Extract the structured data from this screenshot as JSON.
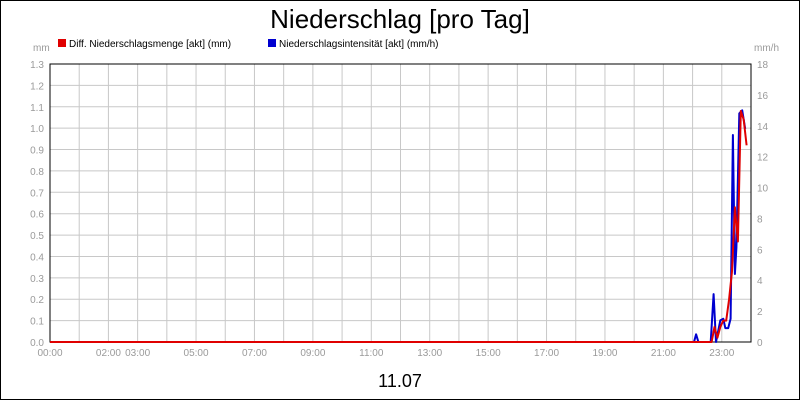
{
  "chart_data": {
    "type": "line",
    "title": "Niederschlag [pro Tag]",
    "date_label": "11.07",
    "y_left": {
      "unit": "mm",
      "range": [
        0,
        1.3
      ],
      "ticks": [
        "0.0",
        "0.1",
        "0.2",
        "0.3",
        "0.4",
        "0.5",
        "0.6",
        "0.7",
        "0.8",
        "0.9",
        "1.0",
        "1.1",
        "1.2",
        "1.3"
      ]
    },
    "y_right": {
      "unit": "mm/h",
      "range": [
        0,
        18
      ],
      "ticks": [
        "0",
        "2",
        "4",
        "6",
        "8",
        "10",
        "12",
        "14",
        "16",
        "18"
      ]
    },
    "x": {
      "range_hours": [
        0,
        24
      ],
      "ticks": [
        {
          "hour": 0,
          "label": "00:00"
        },
        {
          "hour": 2,
          "label": "02:00"
        },
        {
          "hour": 3,
          "label": "03:00"
        },
        {
          "hour": 5,
          "label": "05:00"
        },
        {
          "hour": 7,
          "label": "07:00"
        },
        {
          "hour": 9,
          "label": "09:00"
        },
        {
          "hour": 11,
          "label": "11:00"
        },
        {
          "hour": 13,
          "label": "13:00"
        },
        {
          "hour": 15,
          "label": "15:00"
        },
        {
          "hour": 17,
          "label": "17:00"
        },
        {
          "hour": 19,
          "label": "19:00"
        },
        {
          "hour": 21,
          "label": "21:00"
        },
        {
          "hour": 23,
          "label": "23:00"
        }
      ]
    },
    "grid": true,
    "legend_position": "top-left",
    "series": [
      {
        "name": "Diff. Niederschlagsmenge [akt] (mm)",
        "color": "#e00000",
        "axis": "left",
        "points": [
          [
            0,
            0
          ],
          [
            22.65,
            0
          ],
          [
            22.75,
            0.07
          ],
          [
            22.85,
            0.02
          ],
          [
            22.95,
            0.07
          ],
          [
            23.05,
            0.1
          ],
          [
            23.15,
            0.1
          ],
          [
            23.25,
            0.2
          ],
          [
            23.35,
            0.33
          ],
          [
            23.45,
            0.63
          ],
          [
            23.55,
            0.47
          ],
          [
            23.65,
            1.08
          ],
          [
            23.75,
            1.04
          ],
          [
            23.85,
            0.92
          ]
        ]
      },
      {
        "name": "Niederschlagsintensität [akt] (mm/h)",
        "color": "#0000d0",
        "axis": "right",
        "points": [
          [
            0,
            0
          ],
          [
            22.05,
            0
          ],
          [
            22.12,
            0.5
          ],
          [
            22.2,
            0
          ],
          [
            22.62,
            0
          ],
          [
            22.72,
            3.1
          ],
          [
            22.8,
            0
          ],
          [
            22.95,
            1.4
          ],
          [
            23.05,
            1.5
          ],
          [
            23.12,
            0.9
          ],
          [
            23.22,
            0.9
          ],
          [
            23.3,
            1.5
          ],
          [
            23.38,
            13.4
          ],
          [
            23.45,
            4.4
          ],
          [
            23.5,
            6.1
          ],
          [
            23.6,
            14.8
          ],
          [
            23.7,
            15.0
          ],
          [
            23.8,
            13.8
          ]
        ]
      }
    ]
  }
}
